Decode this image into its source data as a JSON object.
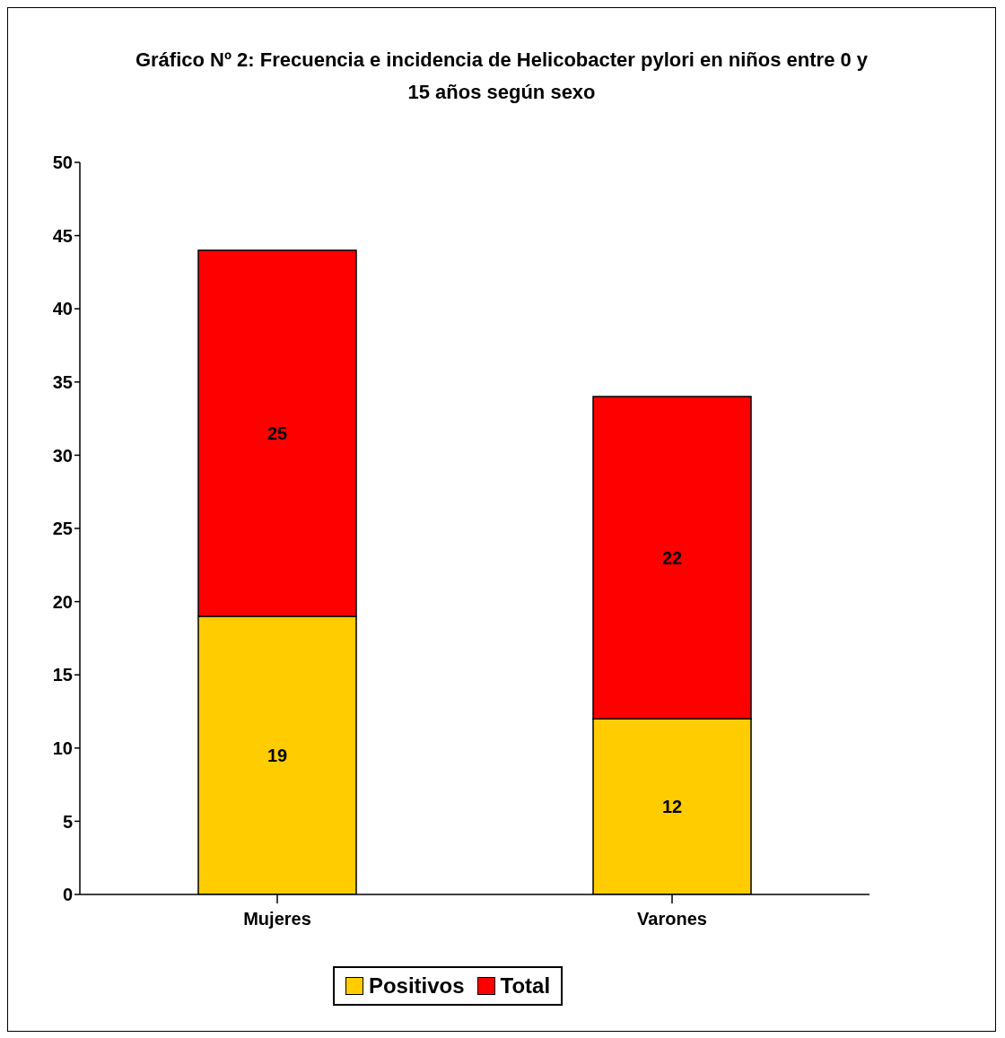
{
  "chart_data": {
    "type": "bar",
    "title": "Gráfico Nº 2: Frecuencia e incidencia de Helicobacter pylori en niños entre 0 y 15 años según sexo",
    "categories": [
      "Mujeres",
      "Varones"
    ],
    "stacked": true,
    "series": [
      {
        "name": "Positivos",
        "color": "#ffcc00",
        "values": [
          19,
          12
        ]
      },
      {
        "name": "Total",
        "color": "#ff0000",
        "values": [
          25,
          22
        ]
      }
    ],
    "ylim": [
      0,
      50
    ],
    "yticks": [
      0,
      5,
      10,
      15,
      20,
      25,
      30,
      35,
      40,
      45,
      50
    ],
    "data_labels": true,
    "legend": "bottom"
  }
}
